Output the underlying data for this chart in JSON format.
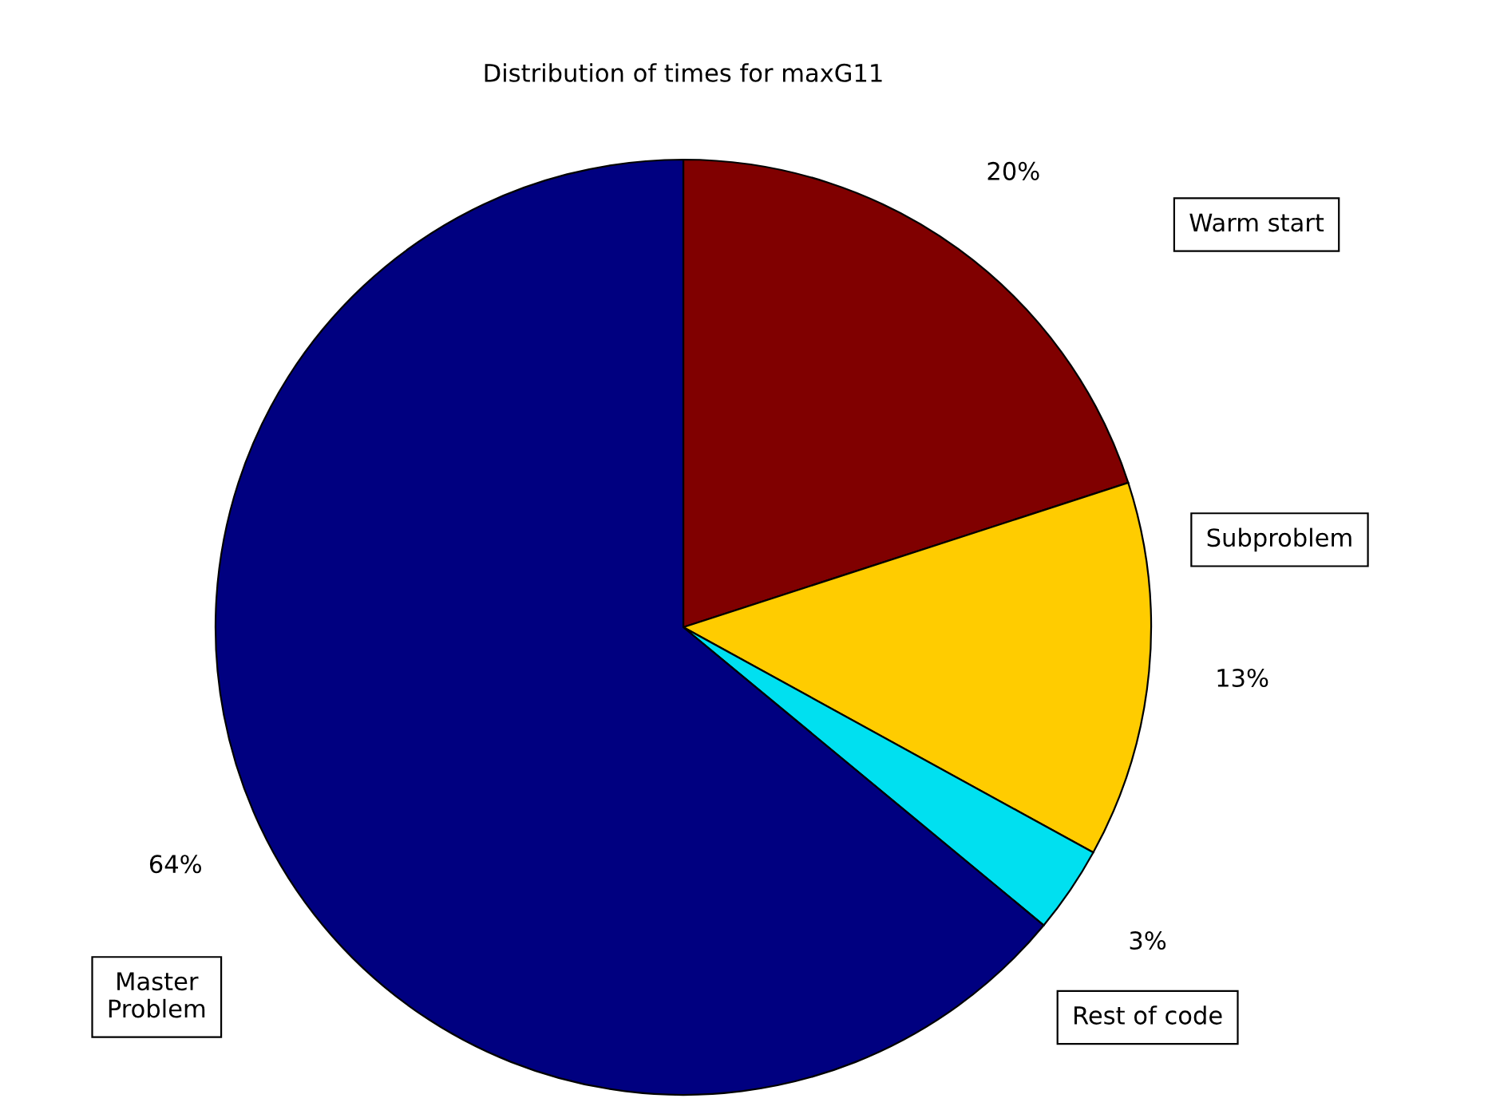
{
  "chart_data": {
    "type": "pie",
    "title": "Distribution of times for maxG11",
    "categories": [
      "Warm start",
      "Subproblem",
      "Rest of code",
      "Master\nProblem"
    ],
    "values": [
      20,
      13,
      3,
      64
    ],
    "colors": [
      "#800000",
      "#ffcc00",
      "#00e0f0",
      "#000080"
    ],
    "value_labels": [
      "20%",
      "13%",
      "3%",
      "64%"
    ]
  }
}
